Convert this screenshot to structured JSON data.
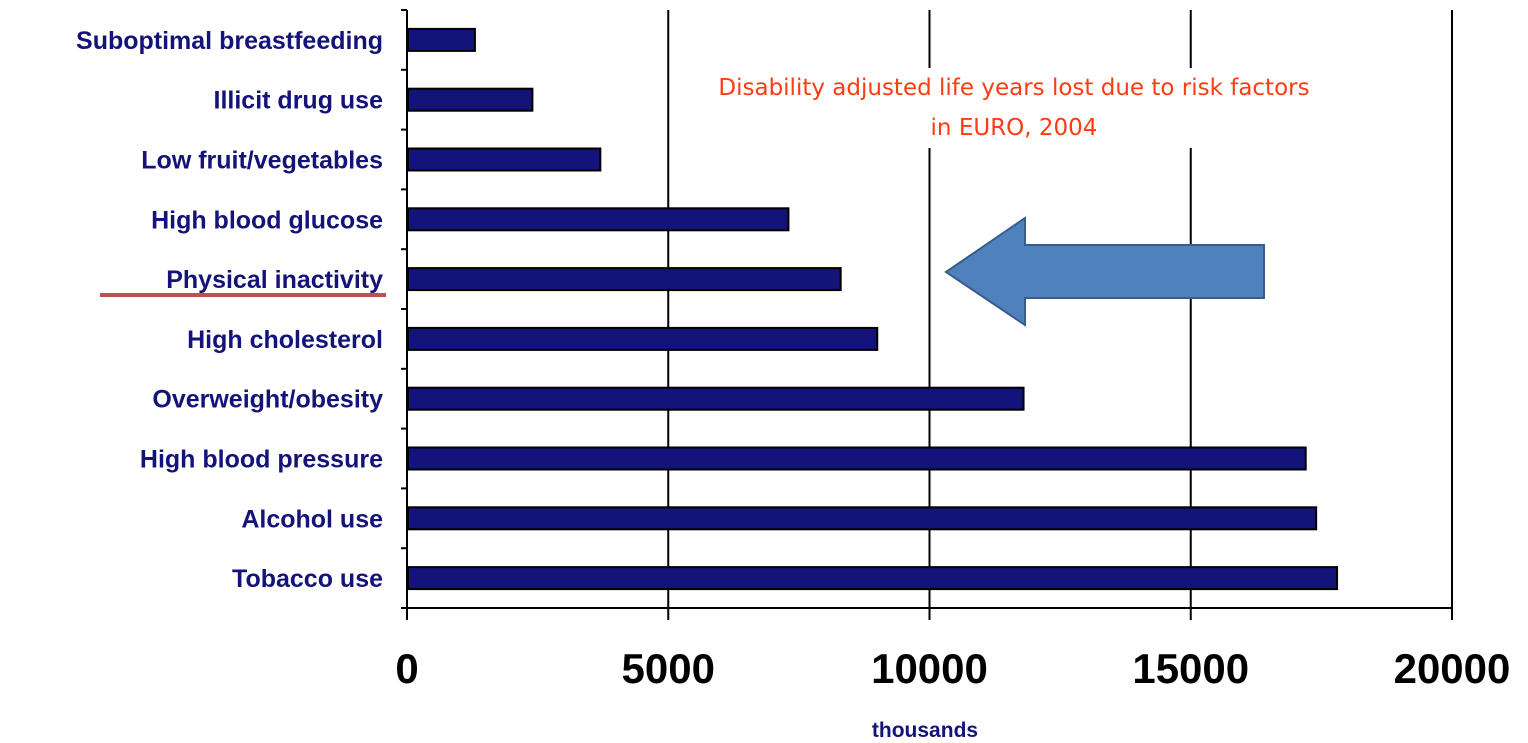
{
  "chart_data": {
    "type": "bar",
    "orientation": "horizontal",
    "categories": [
      "Suboptimal breastfeeding",
      "Illicit drug use",
      "Low fruit/vegetables",
      "High blood glucose",
      "Physical inactivity",
      "High cholesterol",
      "Overweight/obesity",
      "High blood pressure",
      "Alcohol use",
      "Tobacco use"
    ],
    "values": [
      1300,
      2400,
      3700,
      7300,
      8300,
      9000,
      11800,
      17200,
      17400,
      17800
    ],
    "xlabel": "thousands",
    "ylabel": "",
    "xlim": [
      0,
      20000
    ],
    "xticks": [
      "0",
      "5000",
      "10000",
      "15000",
      "20000"
    ],
    "grid": "vertical",
    "bar_color": "#13137a",
    "annotation": {
      "lines": [
        "Disability adjusted life years lost due to risk factors",
        "in EURO, 2004"
      ],
      "color": "#ff3b12"
    },
    "highlight": {
      "category": "Physical inactivity",
      "underline_color": "#c0504d"
    },
    "arrow": {
      "direction": "left",
      "fill": "#4f81bd",
      "stroke": "#385d8a"
    }
  }
}
